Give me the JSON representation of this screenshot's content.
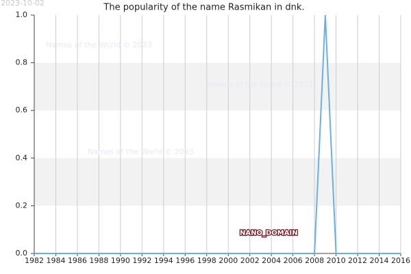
{
  "date_stamp": "2023-10-02",
  "watermark": "Names of the World © 2023",
  "domain_label": "NANO_DOMAIN",
  "chart_data": {
    "type": "line",
    "title": "The popularity of the name Rasmikan in dnk.",
    "x": [
      1982,
      1983,
      1984,
      1985,
      1986,
      1987,
      1988,
      1989,
      1990,
      1991,
      1992,
      1993,
      1994,
      1995,
      1996,
      1997,
      1998,
      1999,
      2000,
      2001,
      2002,
      2003,
      2004,
      2005,
      2006,
      2007,
      2008,
      2009,
      2010,
      2011,
      2012,
      2013,
      2014,
      2015,
      2016
    ],
    "series": [
      {
        "name": "Rasmikan",
        "color": "#6aaee8",
        "values": [
          0,
          0,
          0,
          0,
          0,
          0,
          0,
          0,
          0,
          0,
          0,
          0,
          0,
          0,
          0,
          0,
          0,
          0,
          0,
          0,
          0,
          0,
          0,
          0,
          0,
          0,
          0,
          1,
          0,
          0,
          0,
          0,
          0,
          0,
          0
        ]
      }
    ],
    "xlim": [
      1982,
      2016
    ],
    "xticks": [
      1982,
      1984,
      1986,
      1988,
      1990,
      1992,
      1994,
      1996,
      1998,
      2000,
      2002,
      2004,
      2006,
      2008,
      2010,
      2012,
      2014,
      2016
    ],
    "ylim": [
      0,
      1
    ],
    "yticks": [
      {
        "value": 0,
        "label": "0.0"
      },
      {
        "value": 0.2,
        "label": "0.2"
      },
      {
        "value": 0.4,
        "label": "0.4"
      },
      {
        "value": 0.6,
        "label": "0.6"
      },
      {
        "value": 0.8,
        "label": "0.8"
      },
      {
        "value": 1,
        "label": "1.0"
      }
    ],
    "grid": true
  }
}
